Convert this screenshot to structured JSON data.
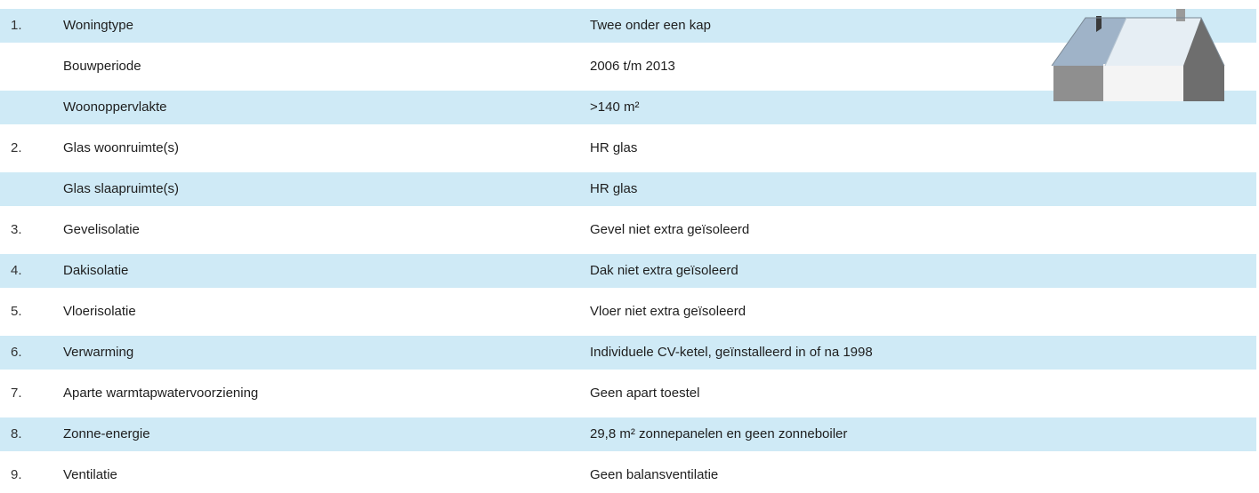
{
  "rows": [
    {
      "num": "1.",
      "label": "Woningtype",
      "value": "Twee onder een kap",
      "shaded": true
    },
    {
      "num": "",
      "label": "Bouwperiode",
      "value": "2006 t/m 2013",
      "shaded": false
    },
    {
      "num": "",
      "label": "Woonoppervlakte",
      "value": ">140 m²",
      "shaded": true
    },
    {
      "num": "2.",
      "label": "Glas woonruimte(s)",
      "value": "HR glas",
      "shaded": false
    },
    {
      "num": "",
      "label": "Glas slaapruimte(s)",
      "value": "HR glas",
      "shaded": true
    },
    {
      "num": "3.",
      "label": "Gevelisolatie",
      "value": "Gevel niet extra geïsoleerd",
      "shaded": false
    },
    {
      "num": "4.",
      "label": "Dakisolatie",
      "value": "Dak niet extra geïsoleerd",
      "shaded": true
    },
    {
      "num": "5.",
      "label": "Vloerisolatie",
      "value": "Vloer niet extra geïsoleerd",
      "shaded": false
    },
    {
      "num": "6.",
      "label": "Verwarming",
      "value": "Individuele CV-ketel, geïnstalleerd in of na 1998",
      "shaded": true
    },
    {
      "num": "7.",
      "label": "Aparte warmtapwatervoorziening",
      "value": "Geen apart toestel",
      "shaded": false
    },
    {
      "num": "8.",
      "label": "Zonne-energie",
      "value": "29,8 m² zonnepanelen en geen zonneboiler",
      "shaded": true
    },
    {
      "num": "9.",
      "label": "Ventilatie",
      "value": "Geen balansventilatie",
      "shaded": false
    }
  ],
  "colors": {
    "shaded_row": "#cfeaf6",
    "plain_row": "#ffffff",
    "text": "#1e1e1e"
  },
  "illustration": "semi-detached-house-icon"
}
